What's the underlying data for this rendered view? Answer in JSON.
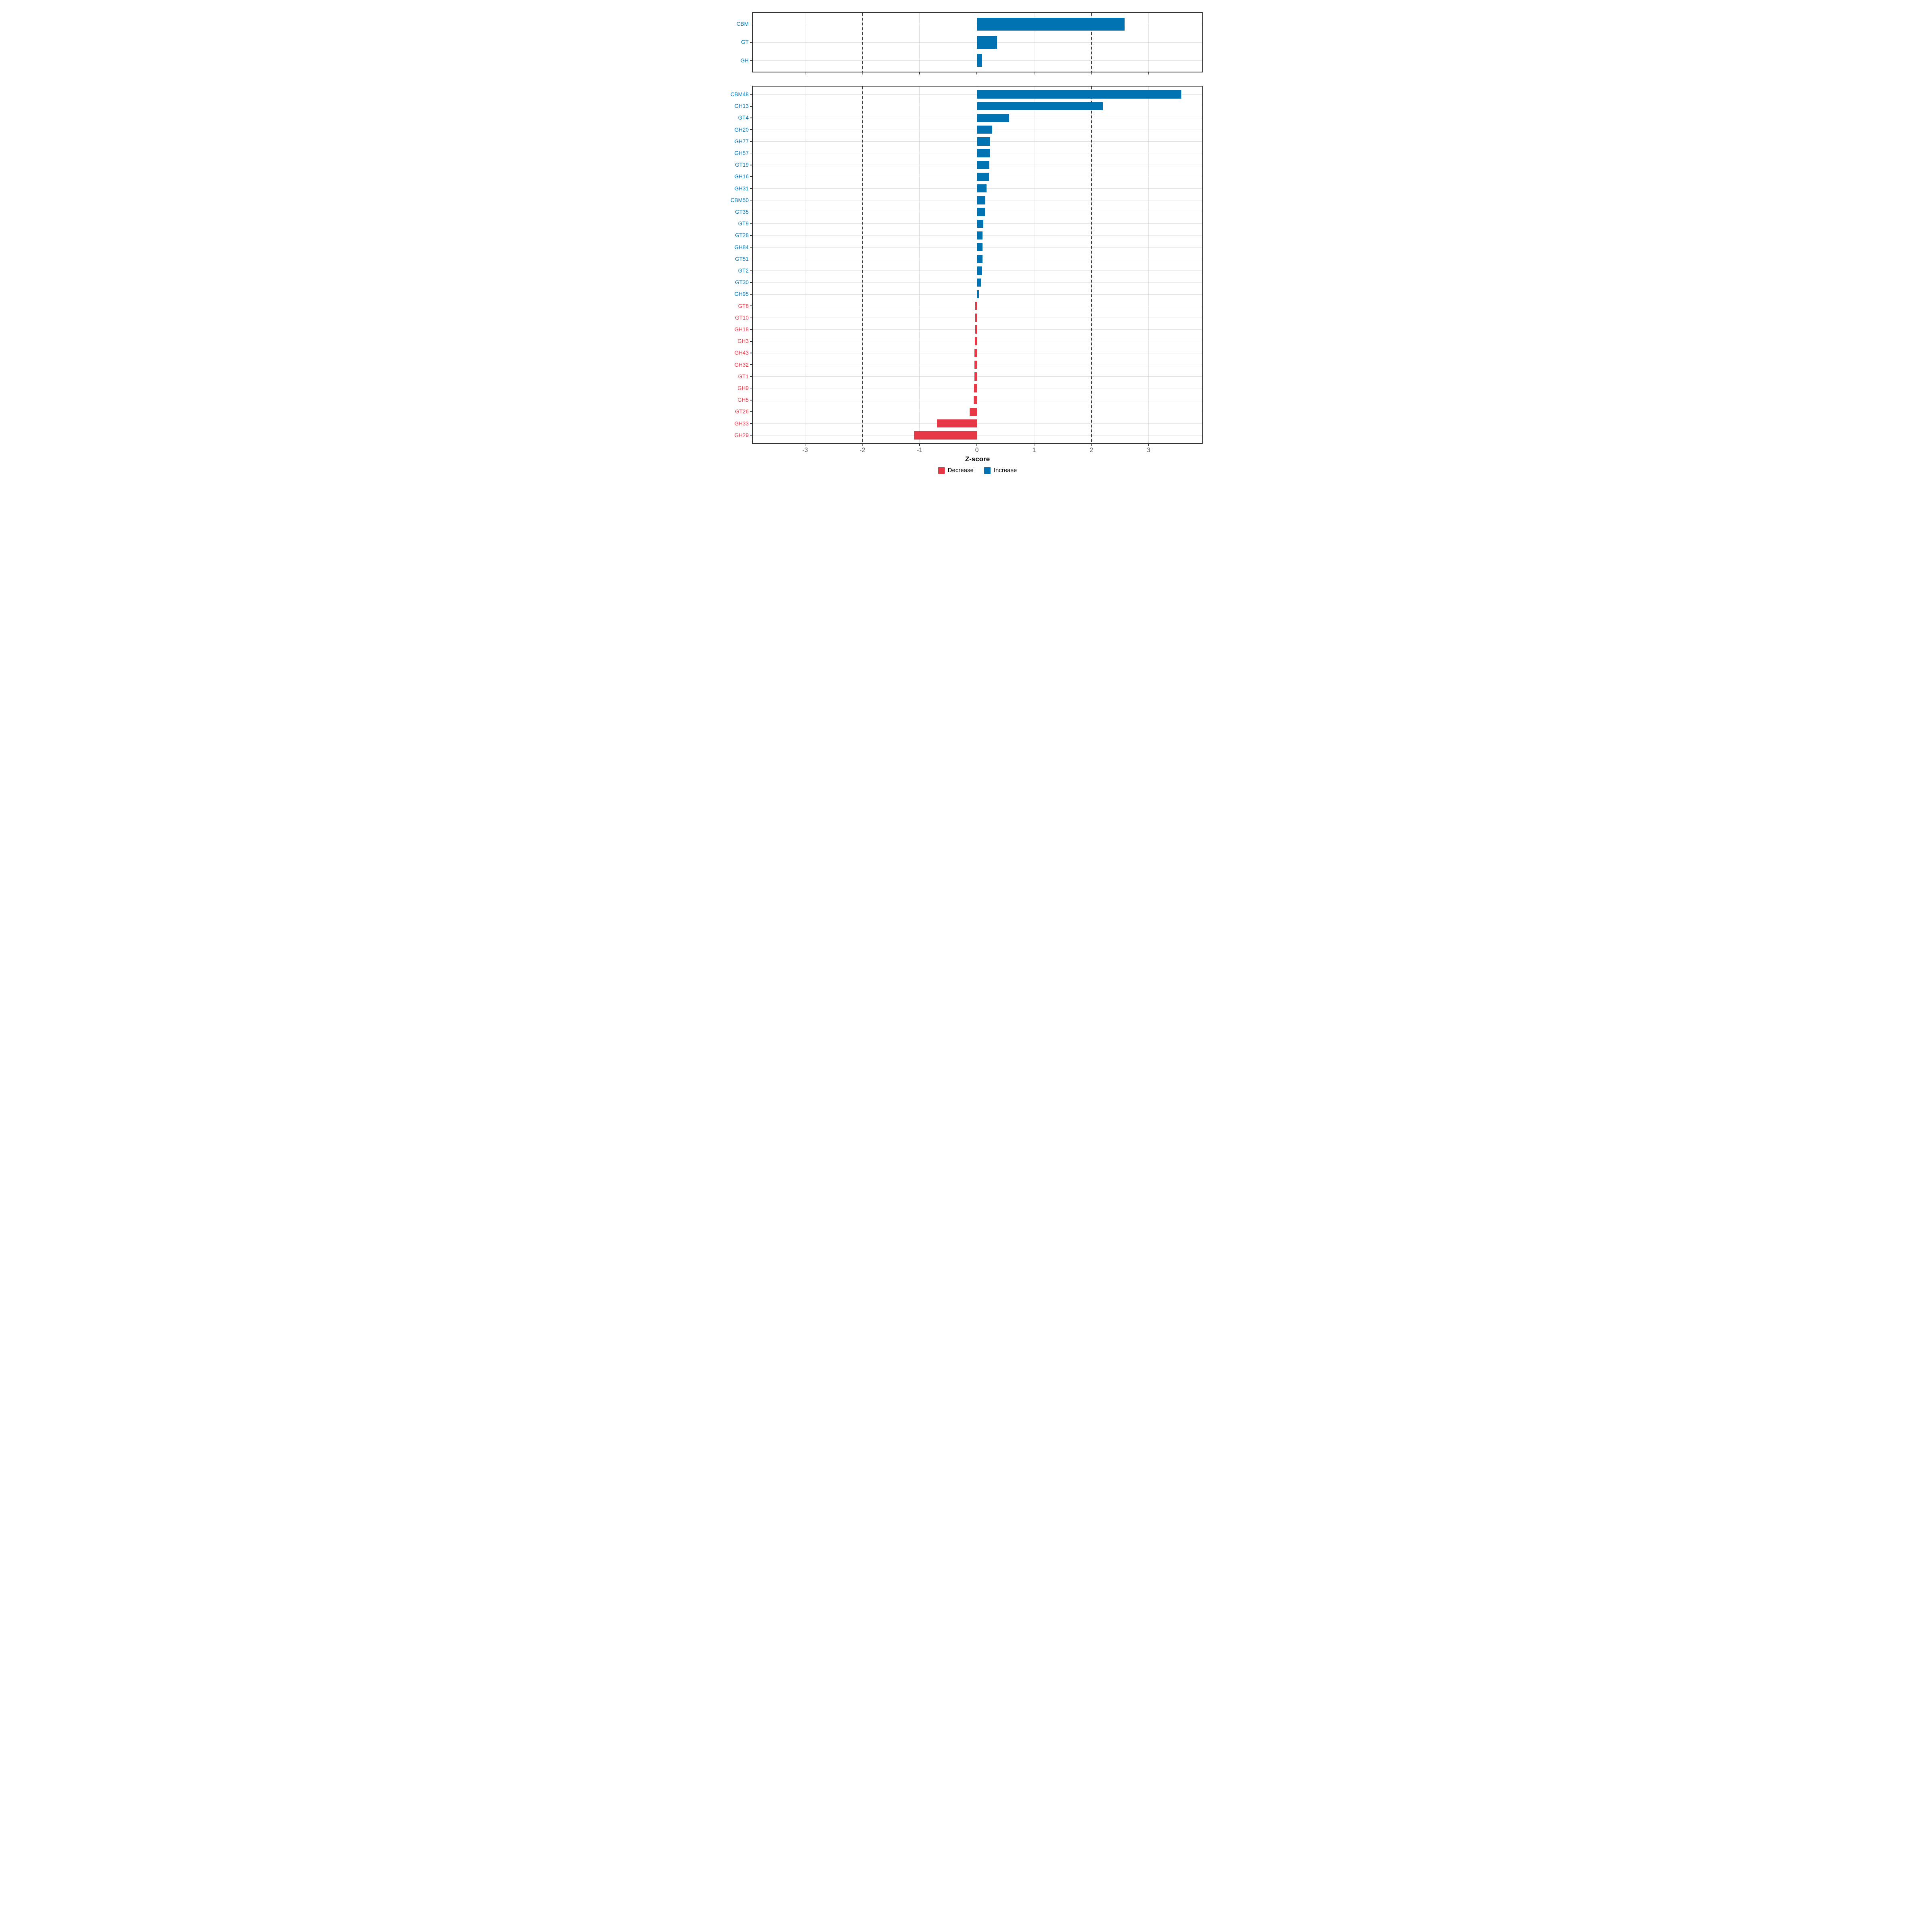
{
  "colors": {
    "increase": "#0173B3",
    "decrease": "#E73847",
    "grid": "#E2E2E2",
    "guide": "#3C3C3C",
    "axis_text": "#4D4D4D",
    "tick": "#333333",
    "border": "#333333"
  },
  "legend": [
    {
      "label": "Decrease",
      "key": "decrease"
    },
    {
      "label": "Increase",
      "key": "increase"
    }
  ],
  "chart_data": [
    {
      "type": "bar",
      "orientation": "horizontal",
      "panel": "top",
      "categories": [
        "CBM",
        "GT",
        "GH"
      ],
      "values": [
        2.58,
        0.35,
        0.09
      ],
      "directions": [
        "increase",
        "increase",
        "increase"
      ],
      "xlim": [
        -3.91,
        3.93
      ],
      "x_ticks": [
        -3,
        -2,
        -1,
        0,
        1,
        2,
        3
      ],
      "dashed_guides": [
        -2,
        2
      ],
      "grid": "on",
      "show_x_tick_labels": false
    },
    {
      "type": "bar",
      "orientation": "horizontal",
      "panel": "bottom",
      "categories": [
        "CBM48",
        "GH13",
        "GT4",
        "GH20",
        "GH77",
        "GH57",
        "GT19",
        "GH16",
        "GH31",
        "CBM50",
        "GT35",
        "GT9",
        "GT28",
        "GH84",
        "GT51",
        "GT2",
        "GT30",
        "GH95",
        "GT8",
        "GT10",
        "GH18",
        "GH3",
        "GH43",
        "GH32",
        "GT1",
        "GH9",
        "GH5",
        "GT26",
        "GH33",
        "GH29"
      ],
      "values": [
        3.57,
        2.2,
        0.56,
        0.27,
        0.23,
        0.23,
        0.22,
        0.21,
        0.17,
        0.15,
        0.14,
        0.11,
        0.1,
        0.1,
        0.095,
        0.09,
        0.08,
        0.035,
        -0.03,
        -0.03,
        -0.03,
        -0.035,
        -0.04,
        -0.04,
        -0.045,
        -0.05,
        -0.06,
        -0.13,
        -0.7,
        -1.1
      ],
      "directions": [
        "increase",
        "increase",
        "increase",
        "increase",
        "increase",
        "increase",
        "increase",
        "increase",
        "increase",
        "increase",
        "increase",
        "increase",
        "increase",
        "increase",
        "increase",
        "increase",
        "increase",
        "increase",
        "decrease",
        "decrease",
        "decrease",
        "decrease",
        "decrease",
        "decrease",
        "decrease",
        "decrease",
        "decrease",
        "decrease",
        "decrease",
        "decrease"
      ],
      "xlabel": "Z-score",
      "x_tick_labels": [
        "-3",
        "-2",
        "-1",
        "0",
        "1",
        "2",
        "3"
      ],
      "x_ticks": [
        -3,
        -2,
        -1,
        0,
        1,
        2,
        3
      ],
      "xlim": [
        -3.91,
        3.93
      ],
      "dashed_guides": [
        -2,
        2
      ],
      "grid": "on",
      "show_x_tick_labels": true,
      "legend_entries": [
        "Decrease",
        "Increase"
      ]
    }
  ]
}
